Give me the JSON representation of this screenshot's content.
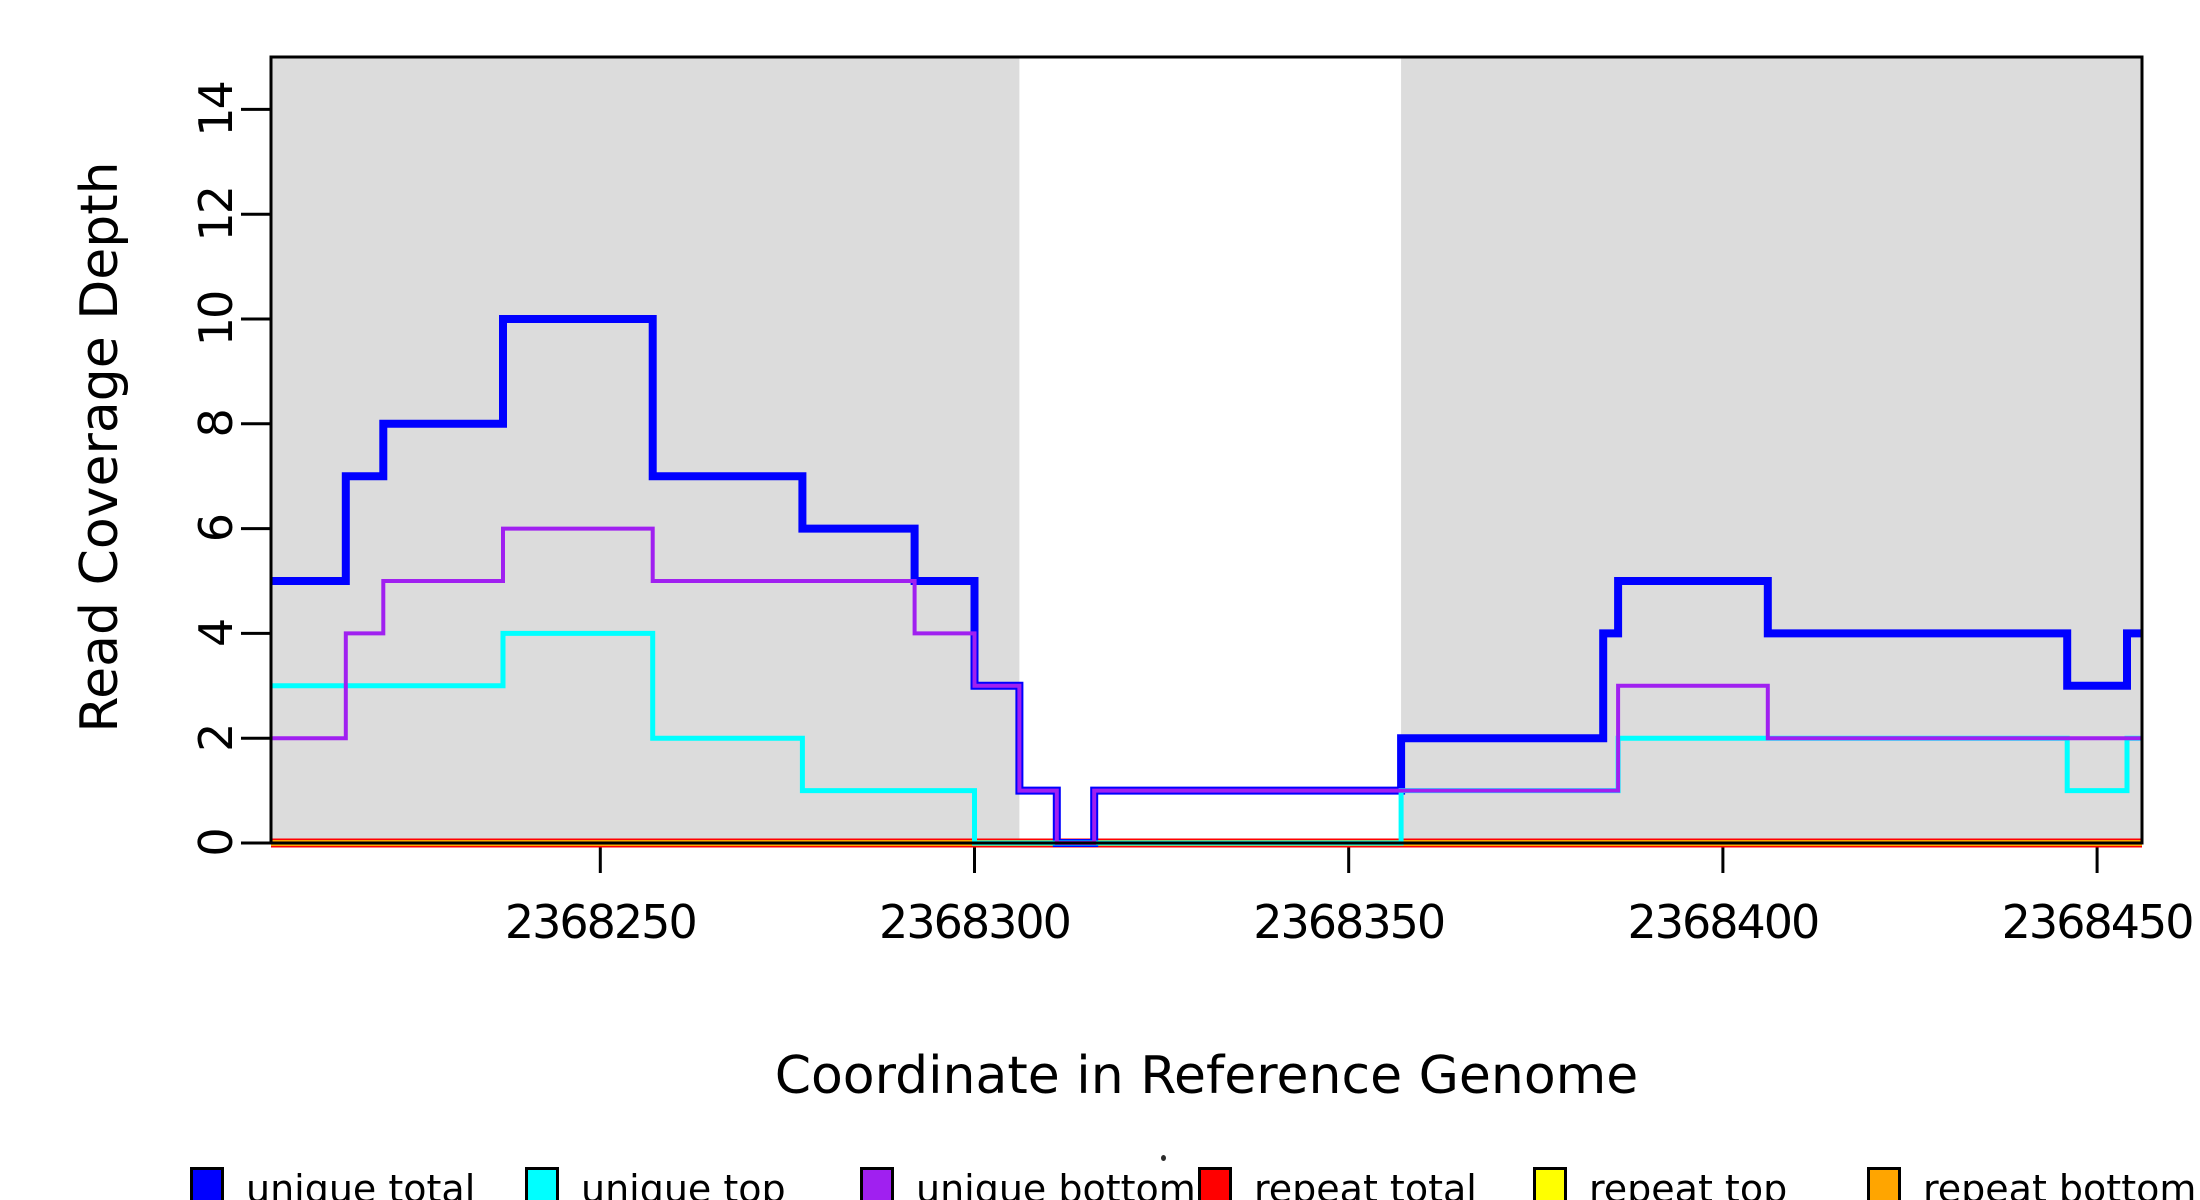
{
  "chart_data": {
    "type": "line",
    "step": true,
    "title": "",
    "xlabel": "Coordinate in Reference Genome",
    "ylabel": "Read Coverage Depth",
    "xlim": [
      2368206,
      2368456
    ],
    "ylim": [
      0,
      15
    ],
    "xticks": [
      2368250,
      2368300,
      2368350,
      2368400,
      2368450
    ],
    "yticks": [
      0,
      2,
      4,
      6,
      8,
      10,
      12,
      14
    ],
    "grid": false,
    "legend_position": "bottom",
    "background_color": "#ffffff",
    "shade_color": "#dcdcdc",
    "axis_color": "#000000",
    "shaded_regions": [
      {
        "from": 2368206,
        "to": 2368306
      },
      {
        "from": 2368357,
        "to": 2368456
      }
    ],
    "series": [
      {
        "name": "unique total",
        "color": "#0000ff",
        "width": 8,
        "points": [
          [
            2368206,
            5
          ],
          [
            2368216,
            7
          ],
          [
            2368221,
            8
          ],
          [
            2368237,
            10
          ],
          [
            2368257,
            7
          ],
          [
            2368277,
            6
          ],
          [
            2368292,
            5
          ],
          [
            2368300,
            3
          ],
          [
            2368306,
            1
          ],
          [
            2368311,
            0
          ],
          [
            2368316,
            1
          ],
          [
            2368357,
            2
          ],
          [
            2368384,
            4
          ],
          [
            2368386,
            5
          ],
          [
            2368406,
            4
          ],
          [
            2368446,
            3
          ],
          [
            2368454,
            4
          ]
        ]
      },
      {
        "name": "unique top",
        "color": "#00ffff",
        "width": 5,
        "points": [
          [
            2368206,
            3
          ],
          [
            2368237,
            4
          ],
          [
            2368257,
            2
          ],
          [
            2368277,
            1
          ],
          [
            2368300,
            0
          ],
          [
            2368357,
            1
          ],
          [
            2368386,
            2
          ],
          [
            2368446,
            1
          ],
          [
            2368454,
            2
          ]
        ]
      },
      {
        "name": "unique bottom",
        "color": "#a020f0",
        "width": 4,
        "points": [
          [
            2368206,
            2
          ],
          [
            2368216,
            4
          ],
          [
            2368221,
            5
          ],
          [
            2368237,
            6
          ],
          [
            2368257,
            5
          ],
          [
            2368292,
            4
          ],
          [
            2368300,
            3
          ],
          [
            2368306,
            1
          ],
          [
            2368311,
            0
          ],
          [
            2368316,
            1
          ],
          [
            2368386,
            3
          ],
          [
            2368406,
            2
          ]
        ]
      },
      {
        "name": "repeat total",
        "color": "#ff0000",
        "width": 9,
        "points": [
          [
            2368206,
            0
          ]
        ]
      },
      {
        "name": "repeat top",
        "color": "#ffff00",
        "width": 6,
        "points": [
          [
            2368206,
            0
          ]
        ]
      },
      {
        "name": "repeat bottom",
        "color": "#ffa500",
        "width": 6,
        "points": [
          [
            2368206,
            0
          ]
        ]
      }
    ],
    "draw_order": [
      4,
      3,
      5,
      0,
      1,
      2
    ]
  },
  "legend": {
    "items": [
      {
        "label": "unique total",
        "color": "#0000ff"
      },
      {
        "label": "unique top",
        "color": "#00ffff"
      },
      {
        "label": "unique bottom",
        "color": "#a020f0"
      },
      {
        "label": "repeat total",
        "color": "#ff0000"
      },
      {
        "label": "repeat top",
        "color": "#ffff00"
      },
      {
        "label": "repeat bottom",
        "color": "#ffa500"
      }
    ]
  }
}
